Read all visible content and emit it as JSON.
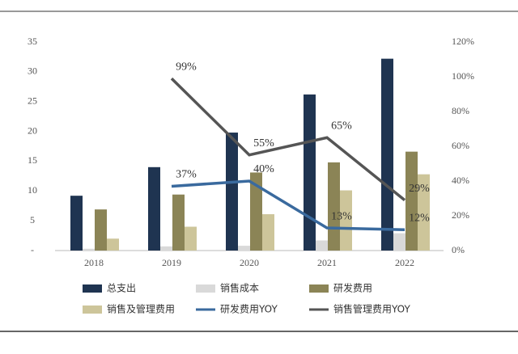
{
  "chart_data": {
    "type": "bar",
    "categories": [
      "2018",
      "2019",
      "2020",
      "2021",
      "2022"
    ],
    "ylim": [
      0,
      35
    ],
    "yticks": [
      {
        "value": 0,
        "label": "-"
      },
      5,
      10,
      15,
      20,
      25,
      30,
      35
    ],
    "y2lim": [
      0,
      120
    ],
    "y2ticks": [
      {
        "value": 0,
        "label": "0%"
      },
      {
        "value": 20,
        "label": "20%"
      },
      {
        "value": 40,
        "label": "40%"
      },
      {
        "value": 60,
        "label": "60%"
      },
      {
        "value": 80,
        "label": "80%"
      },
      {
        "value": 100,
        "label": "100%"
      },
      {
        "value": 120,
        "label": "120%"
      }
    ],
    "legend": "bottom",
    "series": [
      {
        "name": "总支出",
        "type": "bar",
        "color": "#1f3451",
        "values": [
          9.2,
          14,
          19.8,
          26.2,
          32.2
        ]
      },
      {
        "name": "销售成本",
        "type": "bar",
        "color": "#d9d9d9",
        "values": [
          0.3,
          0.7,
          0.8,
          1.7,
          2.9
        ]
      },
      {
        "name": "研发费用",
        "type": "bar",
        "color": "#8b8456",
        "values": [
          6.9,
          9.4,
          13.1,
          14.8,
          16.6
        ]
      },
      {
        "name": "销售及管理费用",
        "type": "bar",
        "color": "#cdc59a",
        "values": [
          2.0,
          4.0,
          6.1,
          10.1,
          12.8
        ]
      },
      {
        "name": "研发费用YOY",
        "type": "line",
        "axis": "y2",
        "color": "#3a6a9e",
        "values": [
          null,
          37,
          40,
          13,
          12
        ],
        "value_labels": [
          null,
          "37%",
          "40%",
          "13%",
          "12%"
        ]
      },
      {
        "name": "销售管理费用YOY",
        "type": "line",
        "axis": "y2",
        "color": "#555555",
        "values": [
          null,
          99,
          55,
          65,
          29
        ],
        "value_labels": [
          null,
          "99%",
          "55%",
          "65%",
          "29%"
        ]
      }
    ]
  }
}
